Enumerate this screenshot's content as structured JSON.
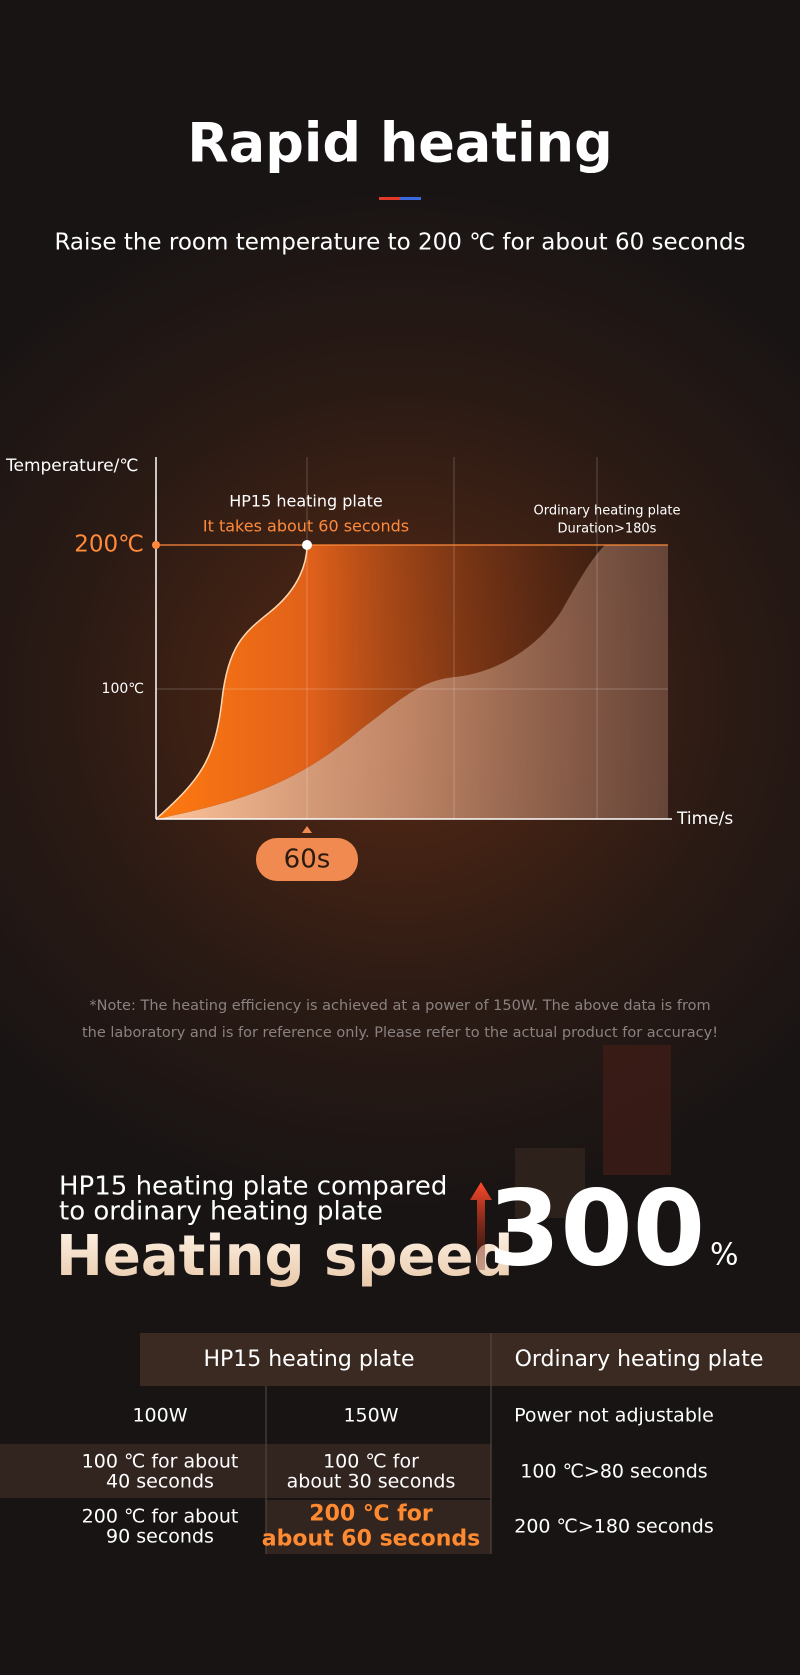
{
  "header": {
    "title": "Rapid heating",
    "subtitle": "Raise the room temperature to 200 ℃ for about 60 seconds"
  },
  "graph": {
    "y_axis_label": "Temperature/℃",
    "x_axis_label": "Time/s",
    "level_high": "200℃",
    "level_mid": "100℃",
    "hp15_label": "HP15 heating plate",
    "hp15_note": "It takes about 60 seconds",
    "ordinary_label": "Ordinary heating plate",
    "ordinary_note": "Duration>180s",
    "time_badge": "60s"
  },
  "note": [
    "*Note: The heating efficiency is achieved at a power of 150W. The above data is from",
    "the laboratory and is for reference only. Please refer to the actual product for accuracy!"
  ],
  "comparison": {
    "line1": "HP15 heating plate compared",
    "line2": "to ordinary heating plate",
    "headline": "Heating speed",
    "figure": "300",
    "unit": "%"
  },
  "table": {
    "header": [
      "HP15 heating plate",
      "Ordinary heating plate"
    ],
    "rows": [
      [
        [
          "100W"
        ],
        [
          "150W"
        ],
        [
          "Power not adjustable"
        ]
      ],
      [
        [
          "100 ℃ for about",
          "40 seconds"
        ],
        [
          "100 ℃ for",
          "about 30 seconds"
        ],
        [
          "100 ℃>80 seconds"
        ]
      ],
      [
        [
          "200 ℃ for about",
          "90 seconds"
        ],
        [
          "200 ℃ for",
          "about 60 seconds"
        ],
        [
          "200 ℃>180 seconds"
        ]
      ]
    ]
  }
}
